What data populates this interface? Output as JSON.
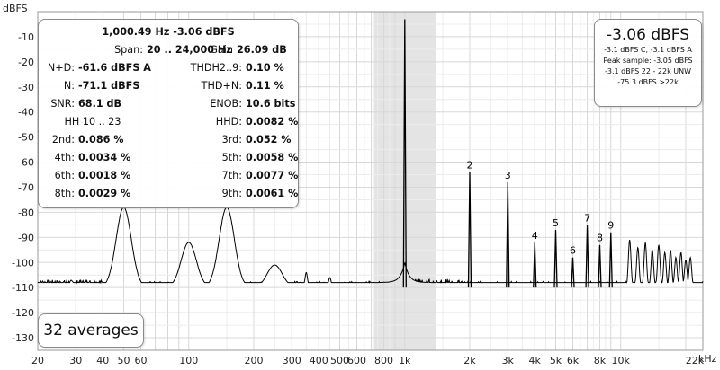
{
  "y_axis_title": "dBFS",
  "x_axis_title": "kHz",
  "chart_data": {
    "type": "line",
    "x_scale": "log",
    "xlim": [
      20,
      24000
    ],
    "ylim": [
      -135,
      0
    ],
    "y_ticks": [
      -10,
      -20,
      -30,
      -40,
      -50,
      -60,
      -70,
      -80,
      -90,
      -100,
      -110,
      -120,
      -130
    ],
    "x_ticks": [
      {
        "f": 20,
        "label": "20"
      },
      {
        "f": 30,
        "label": "30"
      },
      {
        "f": 40,
        "label": "40"
      },
      {
        "f": 50,
        "label": "50"
      },
      {
        "f": 60,
        "label": "60"
      },
      {
        "f": 100,
        "label": "100"
      },
      {
        "f": 200,
        "label": "200"
      },
      {
        "f": 300,
        "label": "300"
      },
      {
        "f": 400,
        "label": "400"
      },
      {
        "f": 500,
        "label": "500"
      },
      {
        "f": 600,
        "label": "600"
      },
      {
        "f": 800,
        "label": "800"
      },
      {
        "f": 1000,
        "label": "1k"
      },
      {
        "f": 2000,
        "label": "2k"
      },
      {
        "f": 3000,
        "label": "3k"
      },
      {
        "f": 4000,
        "label": "4k"
      },
      {
        "f": 5000,
        "label": "5k"
      },
      {
        "f": 6000,
        "label": "6k"
      },
      {
        "f": 8000,
        "label": "8k"
      },
      {
        "f": 10000,
        "label": "10k"
      },
      {
        "f": 22000,
        "label": "22k"
      }
    ],
    "highlight_band": [
      720,
      1400
    ],
    "fundamental": {
      "f": 1000.49,
      "level": -3.06
    },
    "noise_floor": -110,
    "harmonics": [
      {
        "n": "2",
        "f": 2000,
        "level": -64
      },
      {
        "n": "3",
        "f": 3000,
        "level": -68
      },
      {
        "n": "4",
        "f": 4000,
        "level": -92
      },
      {
        "n": "5",
        "f": 5000,
        "level": -87
      },
      {
        "n": "6",
        "f": 6000,
        "level": -98
      },
      {
        "n": "7",
        "f": 7000,
        "level": -85
      },
      {
        "n": "8",
        "f": 8000,
        "level": -93
      },
      {
        "n": "9",
        "f": 9000,
        "level": -88
      }
    ],
    "other_peaks": [
      {
        "f": 50,
        "level": -78
      },
      {
        "f": 100,
        "level": -92
      },
      {
        "f": 150,
        "level": -78
      },
      {
        "f": 250,
        "level": -101
      },
      {
        "f": 350,
        "level": -104
      },
      {
        "f": 450,
        "level": -106
      },
      {
        "f": 11000,
        "level": -91
      },
      {
        "f": 12000,
        "level": -94
      },
      {
        "f": 13000,
        "level": -92
      },
      {
        "f": 14000,
        "level": -95
      },
      {
        "f": 15000,
        "level": -93
      },
      {
        "f": 16000,
        "level": -96
      },
      {
        "f": 17000,
        "level": -95
      },
      {
        "f": 18000,
        "level": -98
      },
      {
        "f": 19000,
        "level": -96
      },
      {
        "f": 20000,
        "level": -99
      },
      {
        "f": 21000,
        "level": -98
      }
    ]
  },
  "stats_panel": {
    "header1": "1,000.49 Hz  -3.06 dBFS",
    "span_label": "Span:",
    "span_value": "20 .. 24,000 Hz",
    "gain_label": "Gain",
    "gain_value": "26.09 dB",
    "rows": [
      {
        "l1": "N+D:",
        "v1": "-61.6 dBFS A",
        "l2": "THDH2..9:",
        "v2": "0.10 %"
      },
      {
        "l1": "N:",
        "v1": "-71.1 dBFS",
        "l2": "THD+N:",
        "v2": "0.11 %"
      },
      {
        "l1": "SNR:",
        "v1": "68.1 dB",
        "l2": "ENOB:",
        "v2": "10.6 bits"
      },
      {
        "l1": "HH 10 .. 23",
        "v1": "",
        "l2": "HHD:",
        "v2": "0.0082 %"
      },
      {
        "l1": "2nd:",
        "v1": "0.086 %",
        "l2": "3rd:",
        "v2": "0.052 %"
      },
      {
        "l1": "4th:",
        "v1": "0.0034 %",
        "l2": "5th:",
        "v2": "0.0058 %"
      },
      {
        "l1": "6th:",
        "v1": "0.0018 %",
        "l2": "7th:",
        "v2": "0.0077 %"
      },
      {
        "l1": "8th:",
        "v1": "0.0029 %",
        "l2": "9th:",
        "v2": "0.0061 %"
      }
    ]
  },
  "level_panel": {
    "main": "-3.06 dBFS",
    "line1": "-3.1 dBFS C, -3.1 dBFS A",
    "line2": "Peak sample: -3.05 dBFS",
    "line3": "-3.1 dBFS 22 - 22k UNW",
    "line4": "-75.3 dBFS >22k"
  },
  "averages": "32 averages",
  "colors": {
    "grid": "#d8d8d8",
    "trace": "#000000",
    "band": "#e4e4e4",
    "axis_text": "#222222"
  }
}
